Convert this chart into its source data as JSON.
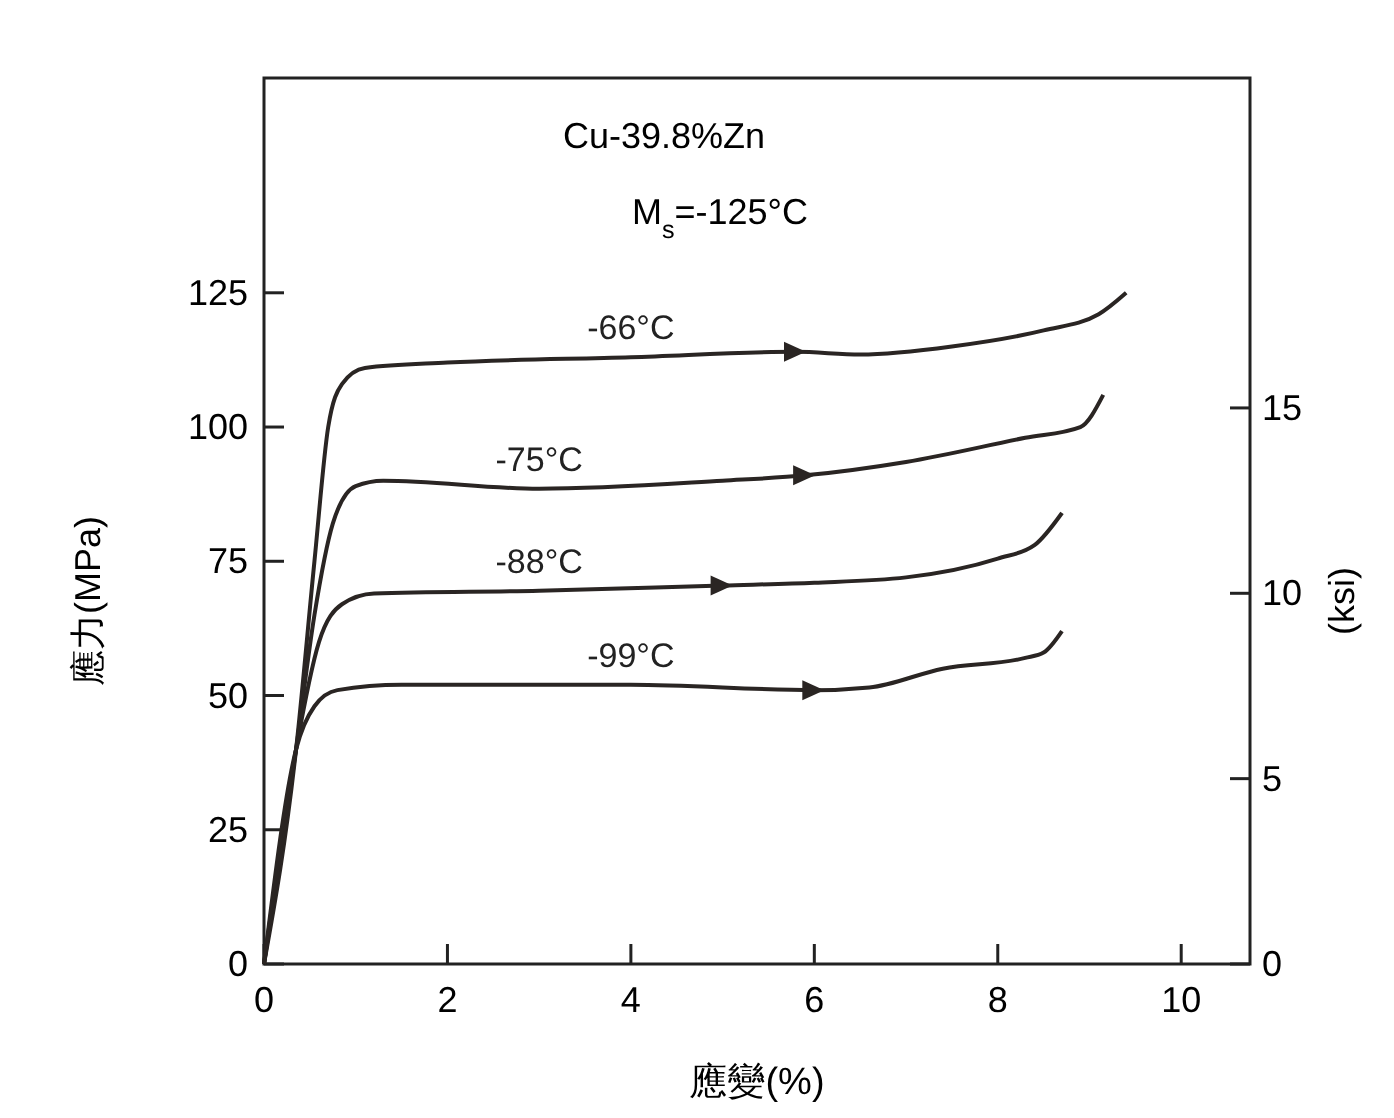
{
  "chart_data": {
    "type": "line",
    "xlabel": "應變(%)",
    "ylabel": "應力(MPa)",
    "y2label": "(ksi)",
    "annotations": [
      "Cu-39.8%Zn",
      "M$_{s}$=-125°C"
    ],
    "xlim": [
      0,
      10.75
    ],
    "xticks": [
      0,
      2,
      4,
      6,
      8,
      10
    ],
    "ylim": [
      0,
      165
    ],
    "yticks": [
      0,
      25,
      50,
      75,
      100,
      125
    ],
    "y2lim": [
      0,
      23.9
    ],
    "y2ticks": [
      0,
      5,
      10,
      15
    ],
    "grid": false,
    "marker": "none",
    "line_style": "solid",
    "series": [
      {
        "name": "-66°C",
        "color": "#2a2523",
        "x": [
          0,
          0.35,
          0.55,
          0.7,
          0.85,
          1.1,
          2,
          4,
          5.8,
          6.5,
          7.5,
          8.5,
          9.1,
          9.4
        ],
        "values": [
          0,
          40,
          75,
          100,
          108,
          111,
          112,
          113,
          114,
          113.5,
          115,
          118,
          121,
          125
        ]
      },
      {
        "name": "-75°C",
        "color": "#2a2523",
        "x": [
          0,
          0.35,
          0.55,
          0.75,
          1.0,
          1.3,
          3,
          5,
          5.9,
          7,
          8.3,
          8.9,
          9.15
        ],
        "values": [
          0,
          40,
          65,
          82,
          89,
          90,
          88.5,
          90,
          91,
          93.5,
          98,
          100,
          106
        ]
      },
      {
        "name": "-88°C",
        "color": "#2a2523",
        "x": [
          0,
          0.35,
          0.6,
          0.85,
          1.2,
          3,
          5,
          6,
          7,
          8,
          8.4,
          8.7
        ],
        "values": [
          0,
          40,
          60,
          67,
          69,
          69.5,
          70.5,
          71,
          72,
          75.5,
          78,
          84
        ]
      },
      {
        "name": "-99°C",
        "color": "#2a2523",
        "x": [
          0,
          0.35,
          0.55,
          0.8,
          1.5,
          4,
          6,
          6.6,
          7.4,
          8.3,
          8.5,
          8.7
        ],
        "values": [
          0,
          40,
          48,
          51,
          52,
          52,
          51,
          51.5,
          55,
          57,
          58,
          62
        ]
      }
    ]
  }
}
